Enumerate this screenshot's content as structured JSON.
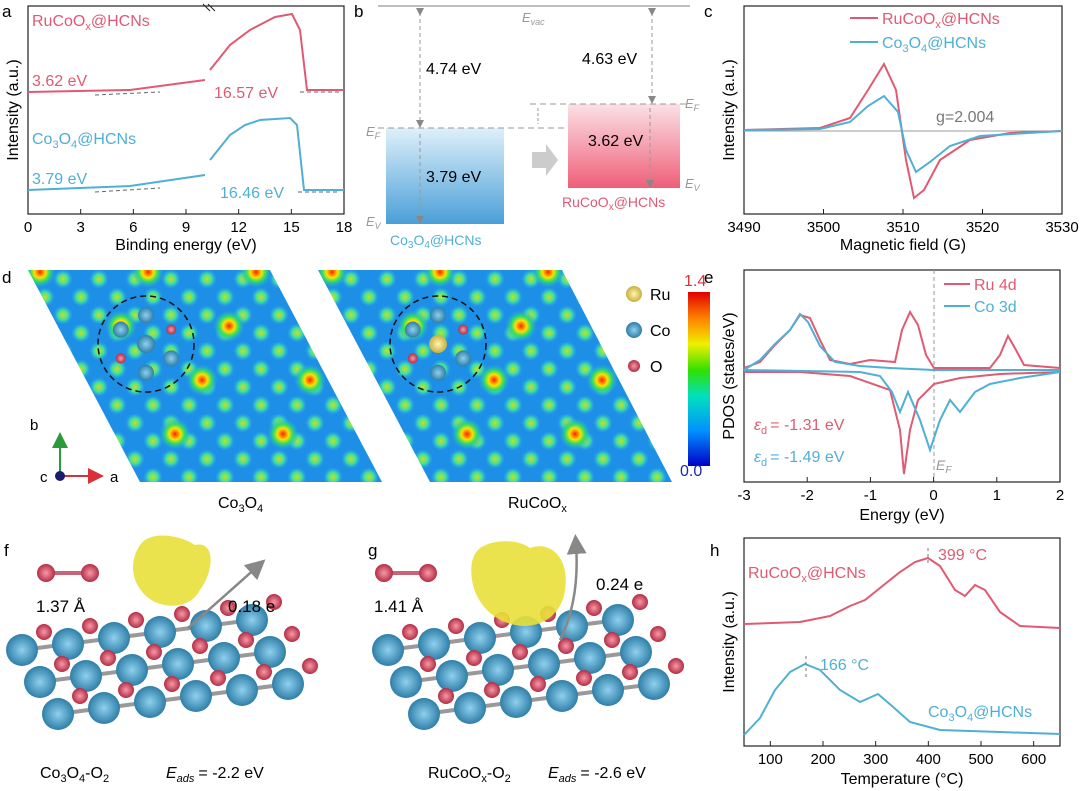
{
  "colors": {
    "ru": "#e05a73",
    "co": "#4fb0d6",
    "grey": "#888888",
    "accent_red": "#d9303a"
  },
  "panel_labels": [
    "a",
    "b",
    "c",
    "d",
    "e",
    "f",
    "g",
    "h"
  ],
  "chart_data": [
    {
      "id": "a",
      "type": "line",
      "xlabel": "Binding energy (eV)",
      "ylabel": "Intensity (a.u.)",
      "xticks": [
        "0",
        "3",
        "6",
        "9",
        "12",
        "15",
        "18"
      ],
      "series": [
        {
          "name": "RuCoOx@HCNs",
          "label_base": "RuCoO",
          "label_sub": "x",
          "label_tail": "@HCNs",
          "cutoff_label": "3.62 eV",
          "secondary_label": "16.57 eV"
        },
        {
          "name": "Co3O4@HCNs",
          "label_base": "Co",
          "label_sub": "3",
          "label_mid": "O",
          "label_sub2": "4",
          "label_tail": "@HCNs",
          "cutoff_label": "3.79 eV",
          "secondary_label": "16.46 eV"
        }
      ]
    },
    {
      "id": "b",
      "type": "diagram",
      "evac": "E",
      "evac_sub": "vac",
      "gap_left": "4.74 eV",
      "gap_right": "4.63 eV",
      "vb_left": "3.79 eV",
      "vb_right": "3.62 eV",
      "ef": "E",
      "ef_sub": "F",
      "ev": "E",
      "ev_sub": "V",
      "left_name": "Co3O4@HCNs",
      "right_name": "RuCoOx@HCNs"
    },
    {
      "id": "c",
      "type": "line",
      "xlabel": "Magnetic field (G)",
      "ylabel": "Intensity (a.u.)",
      "xticks": [
        "3490",
        "3500",
        "3510",
        "3520",
        "3530"
      ],
      "annotation": "g=2.004",
      "series": [
        {
          "name": "RuCoOx@HCNs"
        },
        {
          "name": "Co3O4@HCNs"
        }
      ]
    },
    {
      "id": "d",
      "type": "heatmap",
      "left_caption": "Co3O4",
      "right_caption": "RuCoOx",
      "colorbar_max": "1.4",
      "colorbar_min": "0.0",
      "legend": [
        "Ru",
        "Co",
        "O"
      ],
      "axes": {
        "a": "a",
        "b": "b",
        "c": "c"
      }
    },
    {
      "id": "e",
      "type": "line",
      "xlabel": "Energy (eV)",
      "ylabel": "PDOS (states/eV)",
      "xticks": [
        "-3",
        "-2",
        "-1",
        "0",
        "1",
        "2"
      ],
      "series": [
        {
          "name": "Ru 4d"
        },
        {
          "name": "Co 3d"
        }
      ],
      "ed_ru": "= -1.31 eV",
      "ed_co": "= -1.49 eV",
      "ef_label": "E",
      "ef_sub": "F"
    },
    {
      "id": "f",
      "type": "structure",
      "bond": "1.37 Å",
      "charge": "0.18 e",
      "caption": "Co3O4-O2",
      "eads_prefix": "E",
      "eads_sub": "ads",
      "eads_value": "= -2.2 eV"
    },
    {
      "id": "g",
      "type": "structure",
      "bond": "1.41 Å",
      "charge": "0.24 e",
      "caption": "RuCoOx-O2",
      "eads_prefix": "E",
      "eads_sub": "ads",
      "eads_value": "= -2.6 eV"
    },
    {
      "id": "h",
      "type": "line",
      "xlabel": "Temperature (°C)",
      "ylabel": "Intensity (a.u.)",
      "xticks": [
        "100",
        "200",
        "300",
        "400",
        "500",
        "600"
      ],
      "series": [
        {
          "name": "RuCoOx@HCNs",
          "peak": "399 °C"
        },
        {
          "name": "Co3O4@HCNs",
          "peak": "166 °C"
        }
      ]
    }
  ]
}
